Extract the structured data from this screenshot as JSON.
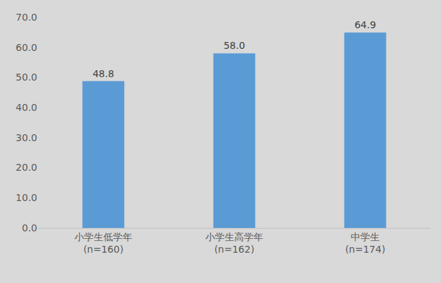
{
  "chart_data": {
    "type": "bar",
    "categories": [
      "小学生低学年\n(n=160)",
      "小学生高学年\n(n=162)",
      "中学生\n(n=174)"
    ],
    "values": [
      48.8,
      58.0,
      64.9
    ],
    "value_labels": [
      "48.8",
      "58.0",
      "64.9"
    ],
    "data_labels": true,
    "color": "#5b9bd5",
    "ylim": [
      0,
      70
    ],
    "yticks": [
      {
        "value": 0,
        "label": "0.0"
      },
      {
        "value": 10,
        "label": "10.0"
      },
      {
        "value": 20,
        "label": "20.0"
      },
      {
        "value": 30,
        "label": "30.0"
      },
      {
        "value": 40,
        "label": "40.0"
      },
      {
        "value": 50,
        "label": "50.0"
      },
      {
        "value": 60,
        "label": "60.0"
      },
      {
        "value": 70,
        "label": "70.0"
      }
    ],
    "grid": false
  }
}
